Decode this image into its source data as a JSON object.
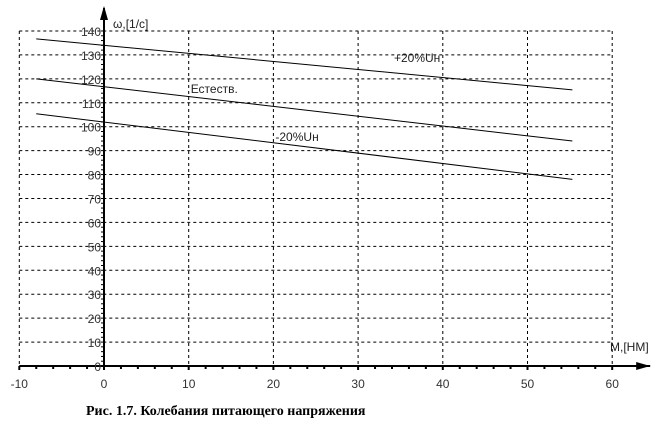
{
  "chart_data": {
    "type": "line",
    "title": "",
    "caption": "Рис. 1.7. Колебания питающего напряжения",
    "xlabel": "M,[НМ]",
    "ylabel": "ω,[1/c]",
    "xlim": [
      -10,
      60
    ],
    "ylim": [
      0,
      140
    ],
    "xticks": [
      -10,
      0,
      10,
      20,
      30,
      40,
      50,
      60
    ],
    "yticks": [
      0,
      10,
      20,
      30,
      40,
      50,
      60,
      70,
      80,
      90,
      100,
      110,
      120,
      130,
      140
    ],
    "grid": true,
    "series": [
      {
        "name": "+20%Uн",
        "x": [
          -8,
          55.3
        ],
        "y": [
          136.7,
          115.4
        ],
        "label_at": [
          34,
          127
        ]
      },
      {
        "name": "Естеств.",
        "x": [
          -8,
          55.3
        ],
        "y": [
          120,
          94
        ],
        "label_at": [
          10,
          114
        ]
      },
      {
        "name": "-20%Uн",
        "x": [
          -8,
          55.3
        ],
        "y": [
          105.4,
          78
        ],
        "label_at": [
          20,
          94
        ]
      }
    ],
    "colors": {
      "line": "#000000",
      "grid": "#000000"
    }
  }
}
